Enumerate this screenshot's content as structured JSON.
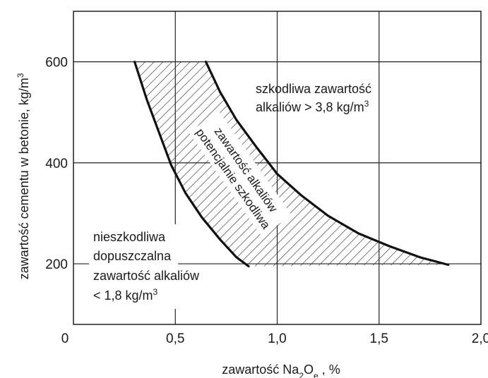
{
  "chart_data": {
    "type": "line",
    "title": "",
    "xlabel": "zawartość Na2Oe , %",
    "ylabel": "zawartość cementu w betonie,  kg/m3",
    "xlim": [
      0,
      2.0
    ],
    "ylim": [
      80,
      700
    ],
    "grid": true,
    "x_ticks": [
      {
        "value": 0,
        "label": "0"
      },
      {
        "value": 0.5,
        "label": "0,5"
      },
      {
        "value": 1.0,
        "label": "1,0"
      },
      {
        "value": 1.5,
        "label": "1,5"
      },
      {
        "value": 2.0,
        "label": "2,0"
      }
    ],
    "y_ticks": [
      {
        "value": 200,
        "label": "200"
      },
      {
        "value": 400,
        "label": "400"
      },
      {
        "value": 600,
        "label": "600"
      }
    ],
    "series": [
      {
        "x": [
          0.3,
          0.36,
          0.42,
          0.48,
          0.55,
          0.63,
          0.72,
          0.8,
          0.86
        ],
        "y": [
          600,
          525,
          460,
          395,
          340,
          292,
          248,
          213,
          195
        ]
      },
      {
        "x": [
          0.65,
          0.72,
          0.8,
          0.9,
          1.0,
          1.12,
          1.25,
          1.4,
          1.55,
          1.7,
          1.84
        ],
        "y": [
          600,
          540,
          485,
          430,
          378,
          335,
          295,
          260,
          235,
          213,
          198
        ]
      }
    ],
    "annotations": {
      "region_harmful_line1": "szkodliwa zawartość",
      "region_harmful_line2": "alkaliów > 3,8 kg/m3",
      "region_safe_line1": "nieszkodliwa",
      "region_safe_line2": "dopuszczalna",
      "region_safe_line3": "zawartość alkaliów",
      "region_safe_line4": "< 1,8 kg/m3",
      "band_line1": "zawartość alkaliów",
      "band_line2": "potencjalnie szkodliwa"
    }
  }
}
